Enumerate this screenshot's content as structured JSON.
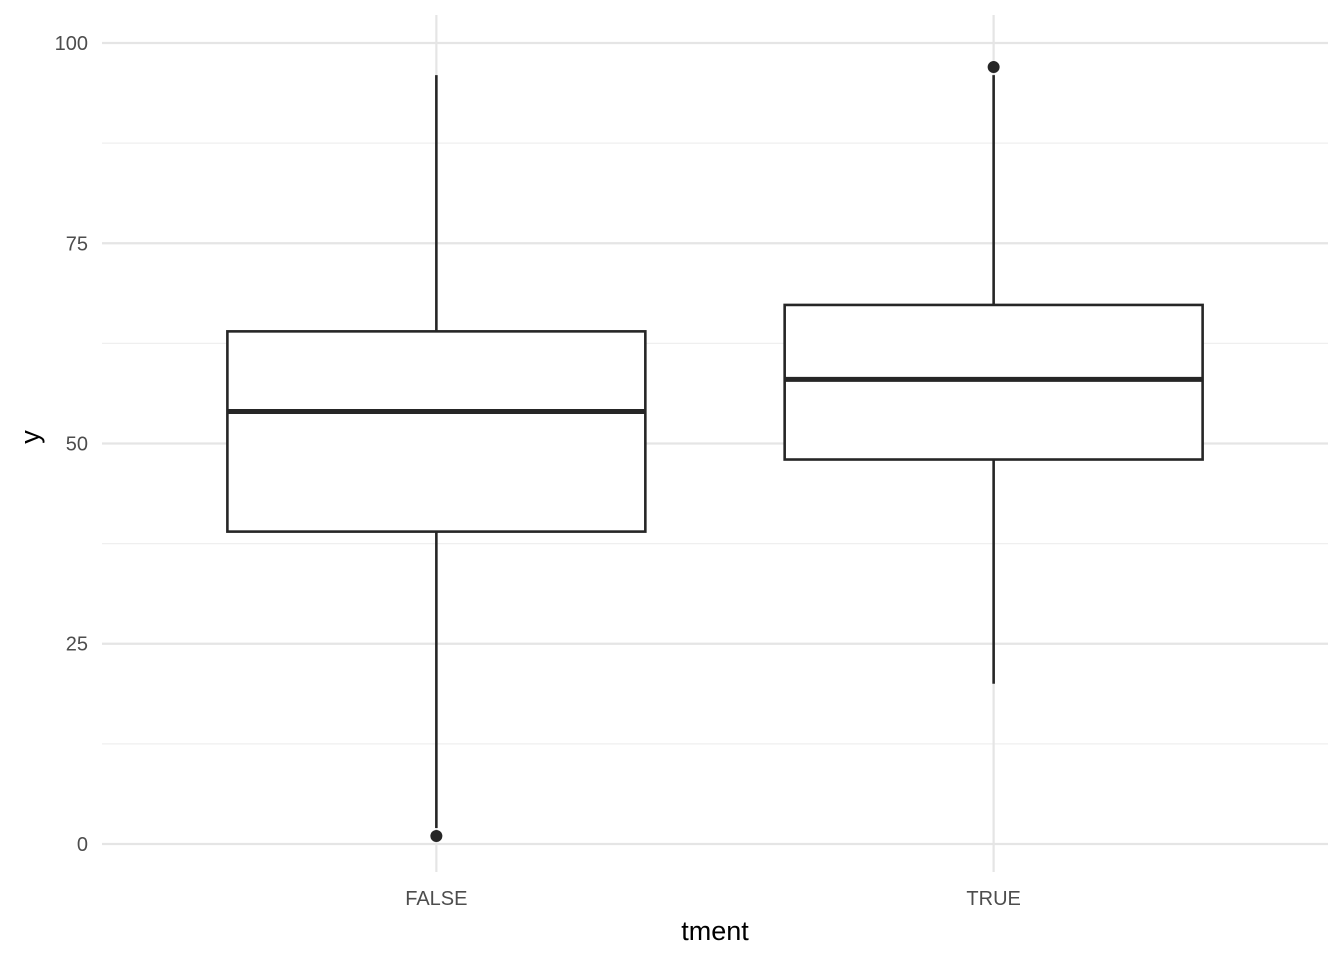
{
  "chart_data": {
    "type": "boxplot",
    "title": "",
    "xlabel": "tment",
    "ylabel": "y",
    "ylim": [
      -3.5,
      103.5
    ],
    "yticks": [
      0,
      25,
      50,
      75,
      100
    ],
    "yticklabels": [
      "0",
      "25",
      "50",
      "75",
      "100"
    ],
    "categories": [
      "FALSE",
      "TRUE"
    ],
    "boxes": [
      {
        "category": "FALSE",
        "whisker_low": 2,
        "q1": 39,
        "median": 54,
        "q3": 64,
        "whisker_high": 96,
        "outliers": [
          1
        ]
      },
      {
        "category": "TRUE",
        "whisker_low": 20,
        "q1": 48,
        "median": 58,
        "q3": 67.3,
        "whisker_high": 96,
        "outliers": [
          97
        ]
      }
    ],
    "grid": true,
    "legend": "none",
    "colors": {
      "box_fill": "#ffffff",
      "box_stroke": "#262626",
      "grid": "#e5e5e5",
      "background": "#ffffff"
    }
  }
}
